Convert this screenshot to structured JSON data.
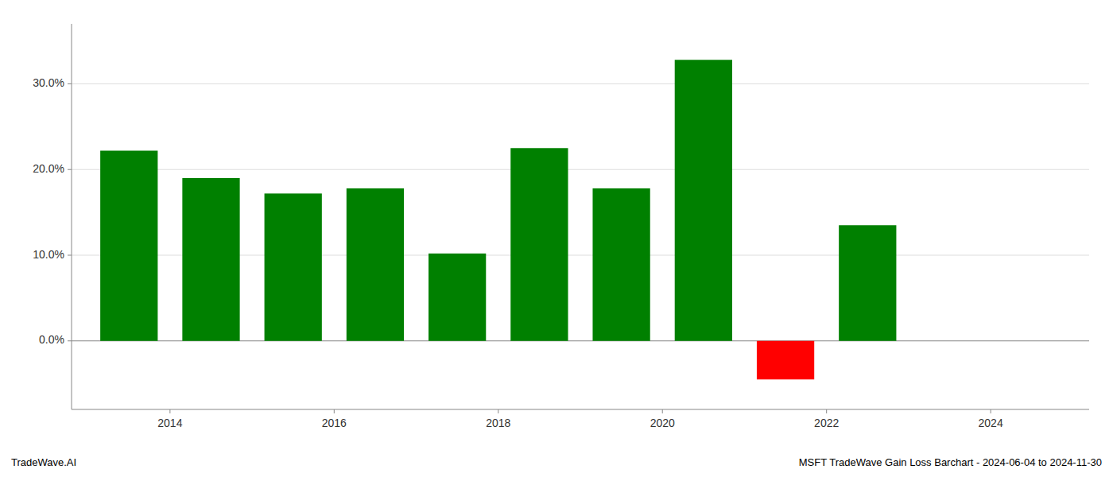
{
  "chart_data": {
    "type": "bar",
    "title": "MSFT TradeWave Gain Loss Barchart - 2024-06-04 to 2024-11-30",
    "annotations": [
      "TradeWave.AI"
    ],
    "x": [
      2013.5,
      2014.5,
      2015.5,
      2016.5,
      2017.5,
      2018.5,
      2019.5,
      2020.5,
      2021.5,
      2022.5
    ],
    "values": [
      0.222,
      0.19,
      0.172,
      0.178,
      0.102,
      0.225,
      0.178,
      0.328,
      -0.045,
      0.135
    ],
    "colors": [
      "#008000",
      "#008000",
      "#008000",
      "#008000",
      "#008000",
      "#008000",
      "#008000",
      "#008000",
      "#ff0000",
      "#008000"
    ],
    "xlim": [
      2012.8,
      2025.2
    ],
    "xticks": [
      2014,
      2016,
      2018,
      2020,
      2022,
      2024
    ],
    "ylim": [
      -0.08,
      0.37
    ],
    "yticks": [
      {
        "value": 0.0,
        "label": "0.0%"
      },
      {
        "value": 0.1,
        "label": "10.0%"
      },
      {
        "value": 0.2,
        "label": "20.0%"
      },
      {
        "value": 0.3,
        "label": "30.0%"
      }
    ],
    "grid": true
  }
}
